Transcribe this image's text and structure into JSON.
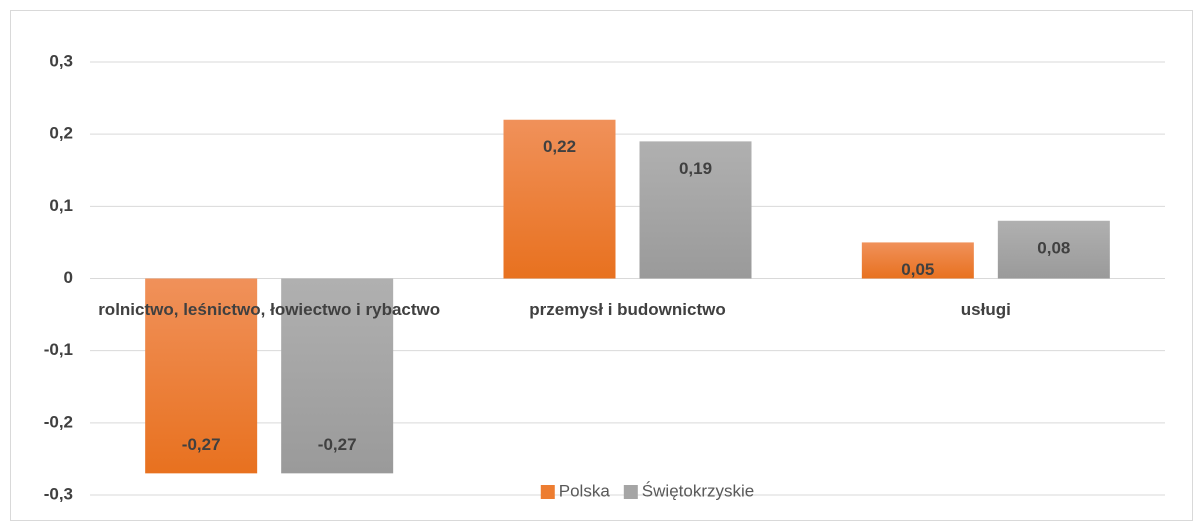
{
  "chart_data": {
    "type": "bar",
    "categories": [
      "rolnictwo, leśnictwo, łowiectwo i rybactwo",
      "przemysł i budownictwo",
      "usługi"
    ],
    "series": [
      {
        "name": "Polska",
        "color": "#ed7d31",
        "values": [
          -0.27,
          0.22,
          0.05
        ],
        "value_labels": [
          "-0,27",
          "0,22",
          "0,05"
        ]
      },
      {
        "name": "Świętokrzyskie",
        "color": "#a5a5a5",
        "values": [
          -0.27,
          0.19,
          0.08
        ],
        "value_labels": [
          "-0,27",
          "0,19",
          "0,08"
        ]
      }
    ],
    "ylim": [
      -0.3,
      0.3
    ],
    "yticks": [
      {
        "value": -0.3,
        "label": "-0,3"
      },
      {
        "value": -0.2,
        "label": "-0,2"
      },
      {
        "value": -0.1,
        "label": "-0,1"
      },
      0,
      {
        "value": 0.1,
        "label": "0,1"
      },
      {
        "value": 0.2,
        "label": "0,2"
      },
      {
        "value": 0.3,
        "label": "0,3"
      }
    ],
    "grid": true,
    "legend": "bottom"
  }
}
